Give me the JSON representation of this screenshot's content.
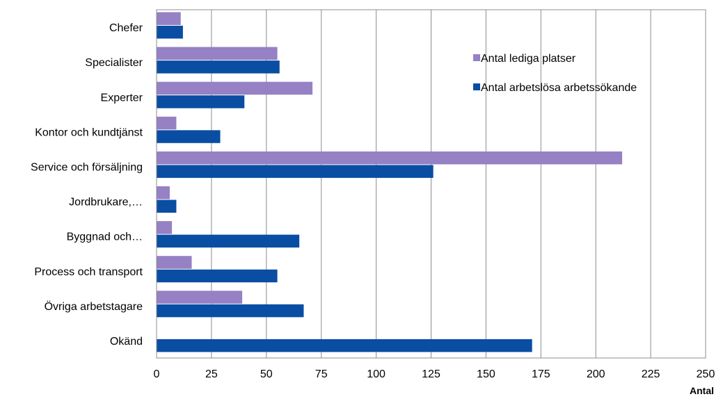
{
  "chart_data": {
    "type": "bar",
    "orientation": "horizontal",
    "categories": [
      "Chefer",
      "Specialister",
      "Experter",
      "Kontor och kundtjänst",
      "Service och försäljning",
      "Jordbrukare,…",
      "Byggnad och…",
      "Process och transport",
      "Övriga arbetstagare",
      "Okänd"
    ],
    "series": [
      {
        "name": "Antal lediga platser",
        "color": "#9581c4",
        "values": [
          11,
          55,
          71,
          9,
          212,
          6,
          7,
          16,
          39,
          0
        ]
      },
      {
        "name": "Antal arbetslösa arbetssökande",
        "color": "#0a4ea3",
        "values": [
          12,
          56,
          40,
          29,
          126,
          9,
          65,
          55,
          67,
          171
        ]
      }
    ],
    "xlim": [
      0,
      250
    ],
    "xticks": [
      "0",
      "25",
      "50",
      "75",
      "100",
      "125",
      "150",
      "175",
      "200",
      "225",
      "250"
    ],
    "xlabel": "Antal",
    "ylabel": "",
    "title": "",
    "grid": "vertical",
    "legend_position": "top-right"
  }
}
